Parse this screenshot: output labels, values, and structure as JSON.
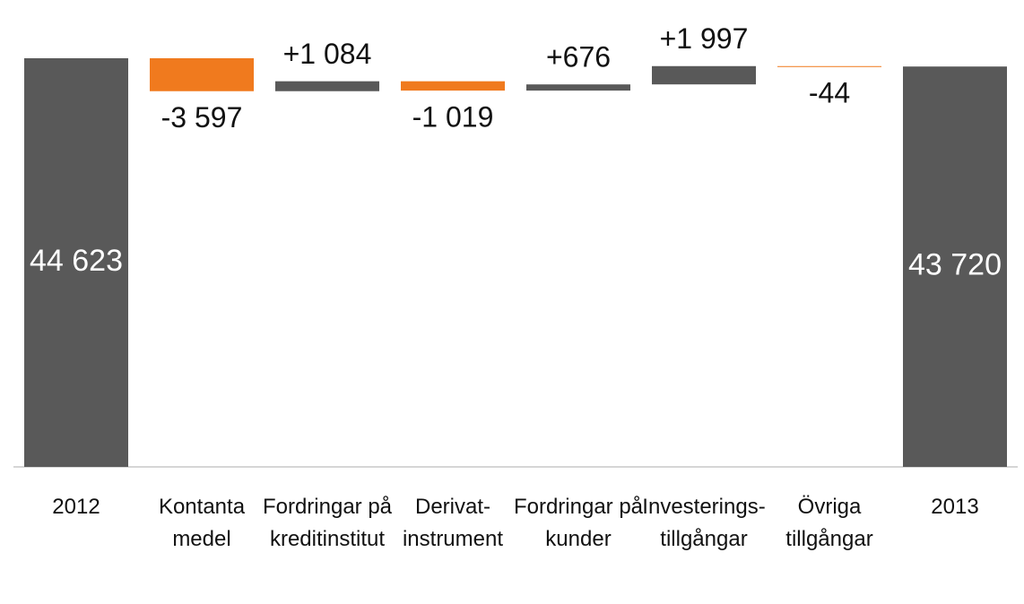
{
  "chart_data": {
    "type": "waterfall",
    "categories": [
      "2012",
      "Kontanta medel",
      "Fordringar på kreditinstitut",
      "Derivat-instrument",
      "Fordringar på kunder",
      "Investerings-tillgångar",
      "Övriga tillgångar",
      "2013"
    ],
    "values": [
      44623,
      -3597,
      1084,
      -1019,
      676,
      1997,
      -44,
      43720
    ],
    "value_labels": [
      "44 623",
      "-3 597",
      "+1 084",
      "-1 019",
      "+676",
      "+1 997",
      "-44",
      "43 720"
    ],
    "is_total": [
      true,
      false,
      false,
      false,
      false,
      false,
      false,
      true
    ],
    "colors": {
      "total": "#595959",
      "increase": "#595959",
      "decrease": "#f07a1e"
    }
  }
}
